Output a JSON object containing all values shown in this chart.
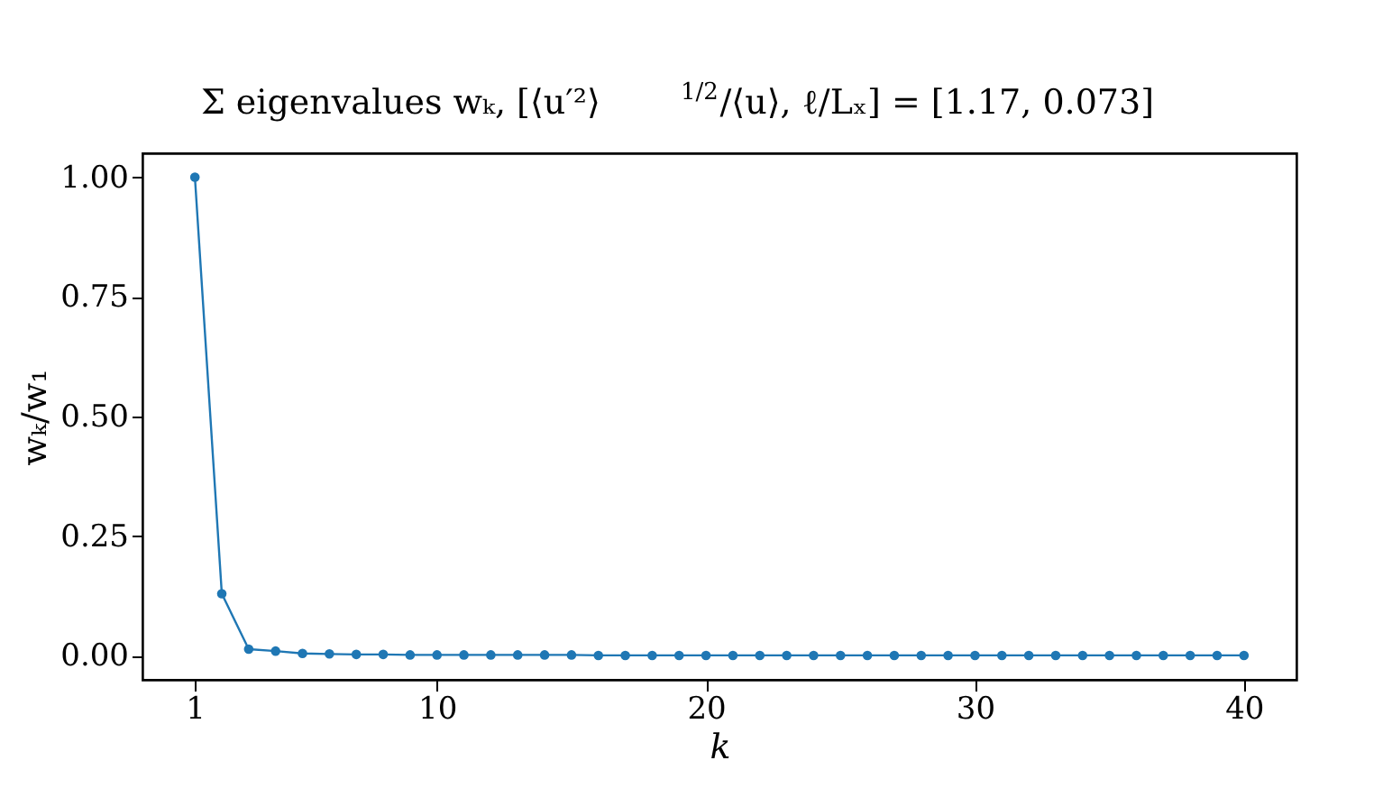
{
  "chart_data": {
    "type": "line",
    "title": "Σ eigenvalues wₖ,  [⟨u′²⟩$^{1/2}$/⟨u⟩, ℓ/Lₓ] = [1.17, 0.073]",
    "xlabel": "k",
    "ylabel": "wₖ/w₁",
    "x": [
      1,
      2,
      3,
      4,
      5,
      6,
      7,
      8,
      9,
      10,
      11,
      12,
      13,
      14,
      15,
      16,
      17,
      18,
      19,
      20,
      21,
      22,
      23,
      24,
      25,
      26,
      27,
      28,
      29,
      30,
      31,
      32,
      33,
      34,
      35,
      36,
      37,
      38,
      39,
      40
    ],
    "series": [
      {
        "color": "#1f77b4",
        "values": [
          1.0,
          0.13,
          0.014,
          0.01,
          0.005,
          0.004,
          0.003,
          0.003,
          0.002,
          0.002,
          0.002,
          0.002,
          0.002,
          0.002,
          0.002,
          0.001,
          0.001,
          0.001,
          0.001,
          0.001,
          0.001,
          0.001,
          0.001,
          0.001,
          0.001,
          0.001,
          0.001,
          0.001,
          0.001,
          0.001,
          0.001,
          0.001,
          0.001,
          0.001,
          0.001,
          0.001,
          0.001,
          0.001,
          0.001,
          0.001
        ]
      }
    ],
    "xlim": [
      -0.95,
      41.95
    ],
    "ylim": [
      -0.05,
      1.05
    ],
    "xticks": [
      1,
      10,
      20,
      30,
      40
    ],
    "yticks": [
      {
        "value": 0,
        "label": "0.00"
      },
      {
        "value": 0.25,
        "label": "0.25"
      },
      {
        "value": 0.5,
        "label": "0.50"
      },
      {
        "value": 0.75,
        "label": "0.75"
      },
      {
        "value": 1,
        "label": "1.00"
      }
    ],
    "grid": false,
    "marker": "circle",
    "line_style": "solid"
  }
}
